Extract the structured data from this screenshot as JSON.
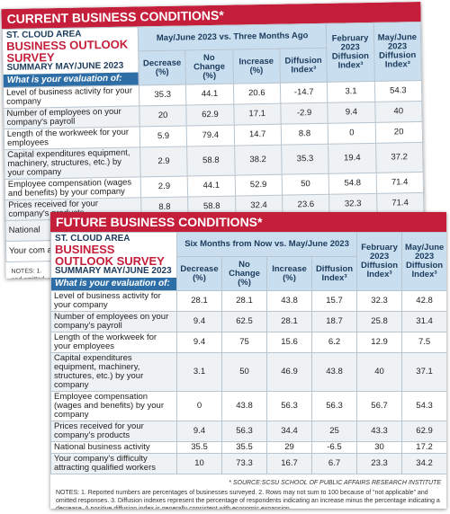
{
  "current": {
    "title": "CURRENT BUSINESS CONDITIONS*",
    "area": "ST. CLOUD AREA",
    "survey": "BUSINESS OUTLOOK SURVEY",
    "summary": "SUMMARY MAY/JUNE 2023",
    "evaluation_prompt": "What is your evaluation of:",
    "group_header": "May/June 2023 vs. Three Months Ago",
    "columns": [
      "Decrease (%)",
      "No Change (%)",
      "Increase (%)",
      "Diffusion Index³",
      "February 2023 Diffusion Index³",
      "May/June 2023 Diffusion Index³"
    ],
    "rows": [
      {
        "label": "Level of business activity for your company",
        "values": [
          35.3,
          44.1,
          20.6,
          -14.7,
          3.1,
          54.3
        ]
      },
      {
        "label": "Number of employees on your company's payroll",
        "values": [
          20,
          62.9,
          17.1,
          -2.9,
          9.4,
          40
        ]
      },
      {
        "label": "Length of the workweek for your employees",
        "values": [
          5.9,
          79.4,
          14.7,
          8.8,
          0,
          20
        ]
      },
      {
        "label": "Capital expenditures equipment, machinery, structures, etc.) by your company",
        "values": [
          2.9,
          58.8,
          38.2,
          35.3,
          19.4,
          37.2
        ]
      },
      {
        "label": "Employee compensation (wages and benefits) by your company",
        "values": [
          2.9,
          44.1,
          52.9,
          50,
          54.8,
          71.4
        ]
      },
      {
        "label": "Prices received for your company's products",
        "values": [
          8.8,
          58.8,
          32.4,
          23.6,
          32.3,
          71.4
        ]
      }
    ],
    "partial_rows": [
      "National",
      "Your com attracting"
    ],
    "notes": [
      "NOTES: 1.",
      "and omitted",
      "percentage"
    ]
  },
  "future": {
    "title": "FUTURE BUSINESS CONDITIONS*",
    "area": "ST. CLOUD AREA",
    "survey": "BUSINESS OUTLOOK SURVEY",
    "summary": "SUMMARY MAY/JUNE 2023",
    "evaluation_prompt": "What is your evaluation of:",
    "group_header": "Six Months from Now vs. May/June 2023",
    "columns": [
      "Decrease (%)",
      "No Change (%)",
      "Increase (%)",
      "Diffusion Index³",
      "February 2023 Diffusion Index³",
      "May/June 2023 Diffusion Index³"
    ],
    "rows": [
      {
        "label": "Level of business activity for your company",
        "values": [
          28.1,
          28.1,
          43.8,
          15.7,
          32.3,
          42.8
        ]
      },
      {
        "label": "Number of employees on your company's payroll",
        "values": [
          9.4,
          62.5,
          28.1,
          18.7,
          25.8,
          31.4
        ]
      },
      {
        "label": "Length of the workweek for your employees",
        "values": [
          9.4,
          75,
          15.6,
          6.2,
          12.9,
          7.5
        ]
      },
      {
        "label": "Capital expenditures equipment, machinery, structures, etc.) by your company",
        "values": [
          3.1,
          50,
          46.9,
          43.8,
          40,
          37.1
        ]
      },
      {
        "label": "Employee compensation (wages and benefits) by your company",
        "values": [
          0,
          43.8,
          56.3,
          56.3,
          56.7,
          54.3
        ]
      },
      {
        "label": "Prices received for your company's products",
        "values": [
          9.4,
          56.3,
          34.4,
          25,
          43.3,
          62.9
        ]
      },
      {
        "label": "National business activity",
        "values": [
          35.5,
          35.5,
          29,
          -6.5,
          30,
          17.2
        ]
      },
      {
        "label": "Your company's difficulty attracting qualified workers",
        "values": [
          10,
          73.3,
          16.7,
          6.7,
          23.3,
          34.2
        ]
      }
    ],
    "source": "* SOURCE:SCSU SCHOOL OF PUBLIC AFFAIRS RESEARCH INSTITUTE",
    "notes": "NOTES: 1. Reported numbers are percentages of businesses surveyed. 2. Rows may not sum to 100 because of “not applicable” and omitted responses. 3. Diffusion indexes represent the percentage of respondents indicating an increase minus the percentage indicating a decrease. A positive diffusion index is generally consistent with economic expansion."
  }
}
